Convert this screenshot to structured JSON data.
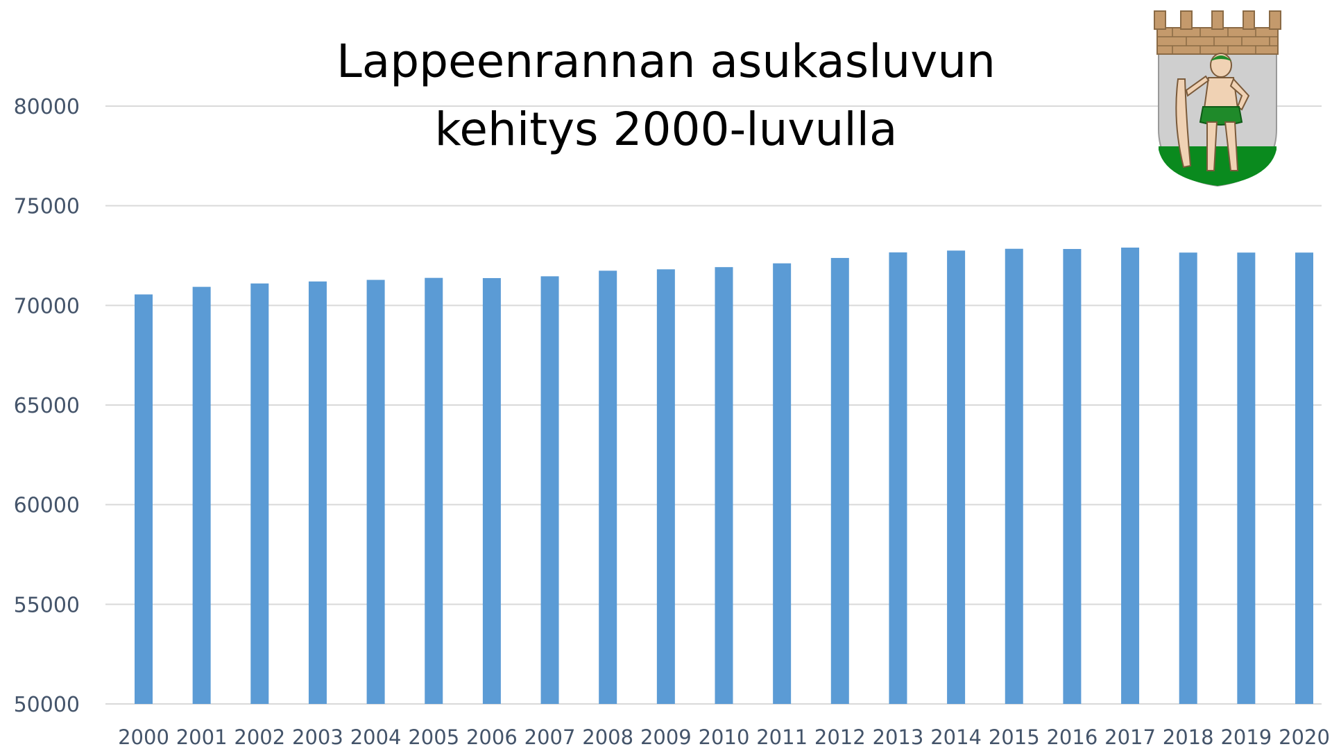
{
  "chart_data": {
    "type": "bar",
    "title_lines": [
      "Lappeenrannan asukasluvun",
      "kehitys 2000-luvulla"
    ],
    "xlabel": "",
    "ylabel": "",
    "categories": [
      "2000",
      "2001",
      "2002",
      "2003",
      "2004",
      "2005",
      "2006",
      "2007",
      "2008",
      "2009",
      "2010",
      "2011",
      "2012",
      "2013",
      "2014",
      "2015",
      "2016",
      "2017",
      "2018",
      "2019",
      "2020"
    ],
    "values": [
      70550,
      70930,
      71100,
      71200,
      71280,
      71380,
      71370,
      71460,
      71740,
      71810,
      71920,
      72110,
      72380,
      72660,
      72750,
      72840,
      72830,
      72900,
      72650,
      72650,
      72650
    ],
    "ylim": [
      50000,
      80000
    ],
    "yticks": [
      50000,
      55000,
      60000,
      65000,
      70000,
      75000,
      80000
    ],
    "ytick_labels": [
      "50000",
      "55000",
      "60000",
      "65000",
      "70000",
      "75000",
      "80000"
    ],
    "grid": true,
    "legend": "none",
    "bar_color": "#5b9bd5",
    "grid_color": "#d9d9d9",
    "tick_label_color": "#44546a"
  },
  "logo": {
    "name": "lappeenranta-coat-of-arms-icon",
    "colors": {
      "wall": "#c49a6c",
      "shield": "#cfcfcf",
      "grass": "#0a8a1e",
      "skin": "#f0d2b4",
      "leaf": "#1f8a2a"
    }
  }
}
